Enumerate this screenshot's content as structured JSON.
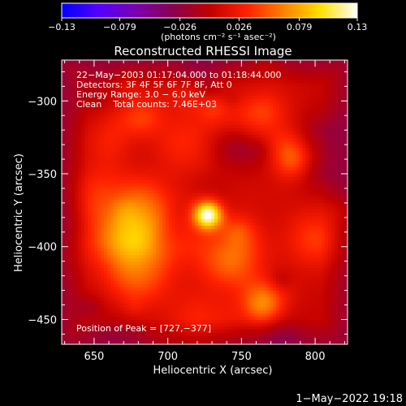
{
  "chart_data": {
    "type": "heatmap",
    "title": "Reconstructed RHESSI Image",
    "xlabel": "Heliocentric X (arcsec)",
    "ylabel": "Heliocentric Y (arcsec)",
    "xlim": [
      628,
      822
    ],
    "ylim": [
      -467,
      -272
    ],
    "x_ticks": [
      650,
      700,
      750,
      800
    ],
    "x_tick_labels": [
      "650",
      "700",
      "750",
      "800"
    ],
    "y_ticks": [
      -300,
      -350,
      -400,
      -450
    ],
    "y_tick_labels": [
      "−300",
      "−350",
      "−400",
      "−450"
    ],
    "colorbar": {
      "ticks": [
        -0.13,
        -0.079,
        -0.026,
        0.026,
        0.079,
        0.13
      ],
      "tick_labels": [
        "−0.13",
        "−0.079",
        "−0.026",
        "0.026",
        "0.079",
        "0.13"
      ],
      "range": [
        -0.13,
        0.13
      ],
      "units": "(photons cm⁻² s⁻¹ asec⁻²)",
      "colormap": [
        "#0000ff",
        "#5500ff",
        "#7a00b0",
        "#8a0050",
        "#c00000",
        "#ff2000",
        "#ff8000",
        "#ffe000",
        "#ffffff"
      ]
    },
    "info_lines": [
      "22−May−2003 01:17:04.000 to 01:18:44.000",
      "Detectors: 3F 4F 5F 6F 7F 8F, Att 0",
      "Energy Range: 3.0 − 6.0 keV",
      "Clean    Total counts: 7.46E+03"
    ],
    "peak_label": "Position of Peak = [727,−377]",
    "peak": [
      727,
      -377
    ],
    "sources": [
      {
        "x": 727,
        "y": -378,
        "amp": 0.13,
        "sigma": 7
      },
      {
        "x": 690,
        "y": -385,
        "amp": 0.05,
        "sigma": 18
      },
      {
        "x": 663,
        "y": -395,
        "amp": 0.045,
        "sigma": 14
      },
      {
        "x": 680,
        "y": -420,
        "amp": 0.04,
        "sigma": 16
      },
      {
        "x": 765,
        "y": -440,
        "amp": 0.05,
        "sigma": 10
      },
      {
        "x": 785,
        "y": -340,
        "amp": 0.045,
        "sigma": 10
      },
      {
        "x": 800,
        "y": -395,
        "amp": 0.035,
        "sigma": 14
      },
      {
        "x": 750,
        "y": -320,
        "amp": 0.03,
        "sigma": 20
      },
      {
        "x": 710,
        "y": -330,
        "amp": 0.025,
        "sigma": 15
      },
      {
        "x": 660,
        "y": -330,
        "amp": 0.02,
        "sigma": 12
      },
      {
        "x": 740,
        "y": -410,
        "amp": 0.03,
        "sigma": 15
      },
      {
        "x": 720,
        "y": -450,
        "amp": 0.025,
        "sigma": 14
      }
    ]
  },
  "timestamp": "1−May−2022 19:18"
}
